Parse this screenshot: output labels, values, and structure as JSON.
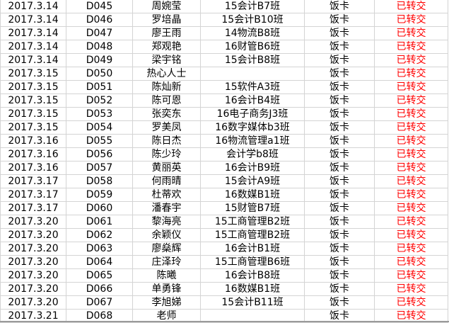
{
  "colors": {
    "status": "#ff0000",
    "grid": "#d4d4d4"
  },
  "rows": [
    {
      "date": "2017.3.14",
      "id": "D045",
      "name": "周婉莹",
      "class": "15会计B7班",
      "item": "饭卡",
      "status": "已转交"
    },
    {
      "date": "2017.3.14",
      "id": "D046",
      "name": "罗培晶",
      "class": "15会计B10班",
      "item": "饭卡",
      "status": "已转交"
    },
    {
      "date": "2017.3.14",
      "id": "D047",
      "name": "廖王雨",
      "class": "14物流B8班",
      "item": "饭卡",
      "status": "已转交"
    },
    {
      "date": "2017.3.14",
      "id": "D048",
      "name": "郑观艳",
      "class": "16财管B6班",
      "item": "饭卡",
      "status": "已转交"
    },
    {
      "date": "2017.3.14",
      "id": "D049",
      "name": "梁宇铭",
      "class": "15会计B8班",
      "item": "饭卡",
      "status": "已转交"
    },
    {
      "date": "2017.3.15",
      "id": "D050",
      "name": "热心人士",
      "class": "",
      "item": "饭卡",
      "status": "已转交"
    },
    {
      "date": "2017.3.15",
      "id": "D051",
      "name": "陈灿新",
      "class": "15软件A3班",
      "item": "饭卡",
      "status": "已转交"
    },
    {
      "date": "2017.3.15",
      "id": "D052",
      "name": "陈可恩",
      "class": "16会计B4班",
      "item": "饭卡",
      "status": "已转交"
    },
    {
      "date": "2017.3.15",
      "id": "D053",
      "name": "张奕东",
      "class": "16电子商务J3班",
      "item": "饭卡",
      "status": "已转交"
    },
    {
      "date": "2017.3.15",
      "id": "D054",
      "name": "罗美凤",
      "class": "16数字媒体b3班",
      "item": "饭卡",
      "status": "已转交"
    },
    {
      "date": "2017.3.16",
      "id": "D055",
      "name": "陈日杰",
      "class": "16物流管理a1班",
      "item": "饭卡",
      "status": "已转交"
    },
    {
      "date": "2017.3.16",
      "id": "D056",
      "name": "陈少玲",
      "class": "会计学b8班",
      "item": "饭卡",
      "status": "已转交"
    },
    {
      "date": "2017.3.16",
      "id": "D057",
      "name": "黄丽英",
      "class": "16会计B9班",
      "item": "饭卡",
      "status": "已转交"
    },
    {
      "date": "2017.3.17",
      "id": "D058",
      "name": "何雨晴",
      "class": "15会计A9班",
      "item": "饭卡",
      "status": "已转交"
    },
    {
      "date": "2017.3.17",
      "id": "D059",
      "name": "杜蒂欢",
      "class": "16数媒B1班",
      "item": "饭卡",
      "status": "已转交"
    },
    {
      "date": "2017.3.17",
      "id": "D060",
      "name": "潘春宇",
      "class": "15财管B7班",
      "item": "饭卡",
      "status": "已转交"
    },
    {
      "date": "2017.3.20",
      "id": "D061",
      "name": "黎海亮",
      "class": "15工商管理B2班",
      "item": "饭卡",
      "status": "已转交"
    },
    {
      "date": "2017.3.20",
      "id": "D062",
      "name": "余颖仪",
      "class": "15工商管理B2班",
      "item": "饭卡",
      "status": "已转交"
    },
    {
      "date": "2017.3.20",
      "id": "D063",
      "name": "廖燊辉",
      "class": "16会计B1班",
      "item": "饭卡",
      "status": "已转交"
    },
    {
      "date": "2017.3.20",
      "id": "D064",
      "name": "庄泽玲",
      "class": "15工商管理B6班",
      "item": "饭卡",
      "status": "已转交"
    },
    {
      "date": "2017.3.20",
      "id": "D065",
      "name": "陈曦",
      "class": "16会计B8班",
      "item": "饭卡",
      "status": "已转交"
    },
    {
      "date": "2017.3.20",
      "id": "D066",
      "name": "单勇锋",
      "class": "16数媒B1班",
      "item": "饭卡",
      "status": "已转交"
    },
    {
      "date": "2017.3.20",
      "id": "D067",
      "name": "李旭娣",
      "class": "15会计B11班",
      "item": "饭卡",
      "status": "已转交"
    },
    {
      "date": "2017.3.21",
      "id": "D068",
      "name": "老师",
      "class": "",
      "item": "饭卡",
      "status": "已转交"
    }
  ]
}
